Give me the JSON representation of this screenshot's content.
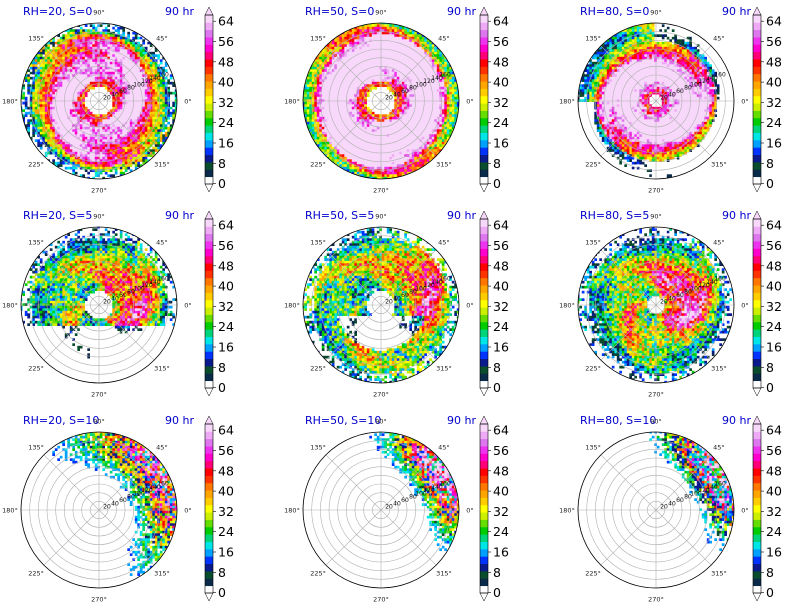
{
  "chart_data": [
    {
      "type": "heatmap",
      "title_left": "RH=20, S=0",
      "title_right": "90 hr",
      "rh": 20,
      "s": 0
    },
    {
      "type": "heatmap",
      "title_left": "RH=50, S=0",
      "title_right": "90 hr",
      "rh": 50,
      "s": 0
    },
    {
      "type": "heatmap",
      "title_left": "RH=80, S=0",
      "title_right": "90 hr",
      "rh": 80,
      "s": 0
    },
    {
      "type": "heatmap",
      "title_left": "RH=20, S=5",
      "title_right": "90 hr",
      "rh": 20,
      "s": 5
    },
    {
      "type": "heatmap",
      "title_left": "RH=50, S=5",
      "title_right": "90 hr",
      "rh": 50,
      "s": 5
    },
    {
      "type": "heatmap",
      "title_left": "RH=80, S=5",
      "title_right": "90 hr",
      "rh": 80,
      "s": 5
    },
    {
      "type": "heatmap",
      "title_left": "RH=20, S=10",
      "title_right": "90 hr",
      "rh": 20,
      "s": 10
    },
    {
      "type": "heatmap",
      "title_left": "RH=50, S=10",
      "title_right": "90 hr",
      "rh": 50,
      "s": 10
    },
    {
      "type": "heatmap",
      "title_left": "RH=80, S=10",
      "title_right": "90 hr",
      "rh": 80,
      "s": 10
    }
  ],
  "polar": {
    "angle_labels": [
      "0°",
      "45°",
      "90°",
      "135°",
      "180°",
      "225°",
      "270°",
      "315°"
    ],
    "angles_deg": [
      0,
      45,
      90,
      135,
      180,
      225,
      270,
      315
    ],
    "radius_labels": [
      "20",
      "40",
      "60",
      "80",
      "100",
      "120",
      "140",
      "160"
    ],
    "radius_values": [
      20,
      40,
      60,
      80,
      100,
      120,
      140,
      160
    ],
    "rmax": 180
  },
  "colorbar": {
    "tick_labels": [
      "0",
      "8",
      "16",
      "24",
      "32",
      "40",
      "48",
      "56",
      "64"
    ],
    "ticks": [
      0,
      8,
      16,
      24,
      32,
      40,
      48,
      56,
      64
    ],
    "colors": [
      "#ffffff",
      "#0a2a4a",
      "#0a4d2e",
      "#0a1a8c",
      "#0033ff",
      "#00a0ff",
      "#00e5e5",
      "#00d47a",
      "#00cc00",
      "#66dd00",
      "#ccee00",
      "#ffff00",
      "#ffcc00",
      "#ffa500",
      "#ff7700",
      "#ff3300",
      "#ff0000",
      "#ff0077",
      "#ff00cc",
      "#ee33ee",
      "#dd77ee",
      "#eeaaf5",
      "#f8d8fa"
    ]
  }
}
